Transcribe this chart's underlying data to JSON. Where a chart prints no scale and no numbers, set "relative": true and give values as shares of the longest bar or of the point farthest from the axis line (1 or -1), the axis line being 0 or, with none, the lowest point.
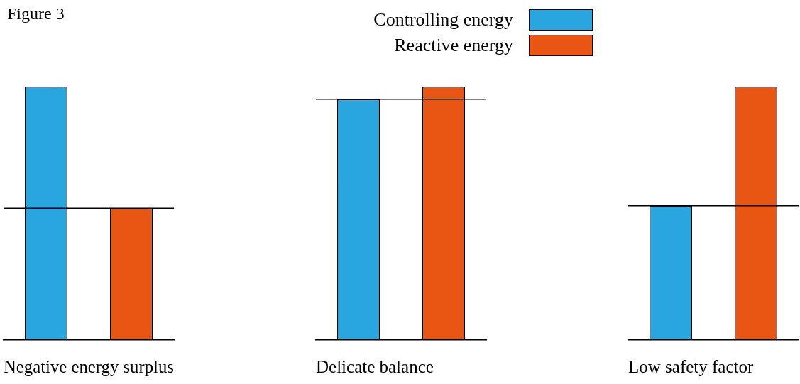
{
  "chart_data": [
    {
      "type": "bar",
      "title": "Figure 3",
      "xlabel": "Negative energy surplus",
      "relative": true,
      "stacked": true,
      "categories": [
        null,
        null
      ],
      "series": [
        {
          "color": "#29a6e0",
          "values": [
            1,
            null
          ]
        },
        {
          "color": "#e95513",
          "values": [
            null,
            0.52
          ]
        }
      ],
      "ref_lines": [
        {
          "axis": "y",
          "value": 0.52,
          "color": "#000000"
        }
      ]
    },
    {
      "type": "bar",
      "xlabel": "Delicate balance",
      "relative": true,
      "stacked": true,
      "legend": "top",
      "categories": [
        null,
        null
      ],
      "series": [
        {
          "name": "Controlling energy",
          "color": "#29a6e0",
          "values": [
            0.95,
            null
          ]
        },
        {
          "name": "Reactive energy",
          "color": "#e95513",
          "values": [
            null,
            1
          ]
        }
      ],
      "ref_lines": [
        {
          "axis": "y",
          "value": 0.95,
          "color": "#000000"
        }
      ]
    },
    {
      "type": "bar",
      "xlabel": "Low safety factor",
      "relative": true,
      "stacked": true,
      "categories": [
        null,
        null
      ],
      "series": [
        {
          "color": "#29a6e0",
          "values": [
            0.53,
            null
          ]
        },
        {
          "color": "#e95513",
          "values": [
            null,
            1
          ]
        }
      ],
      "ref_lines": [
        {
          "axis": "y",
          "value": 0.53,
          "color": "#000000"
        }
      ]
    }
  ]
}
